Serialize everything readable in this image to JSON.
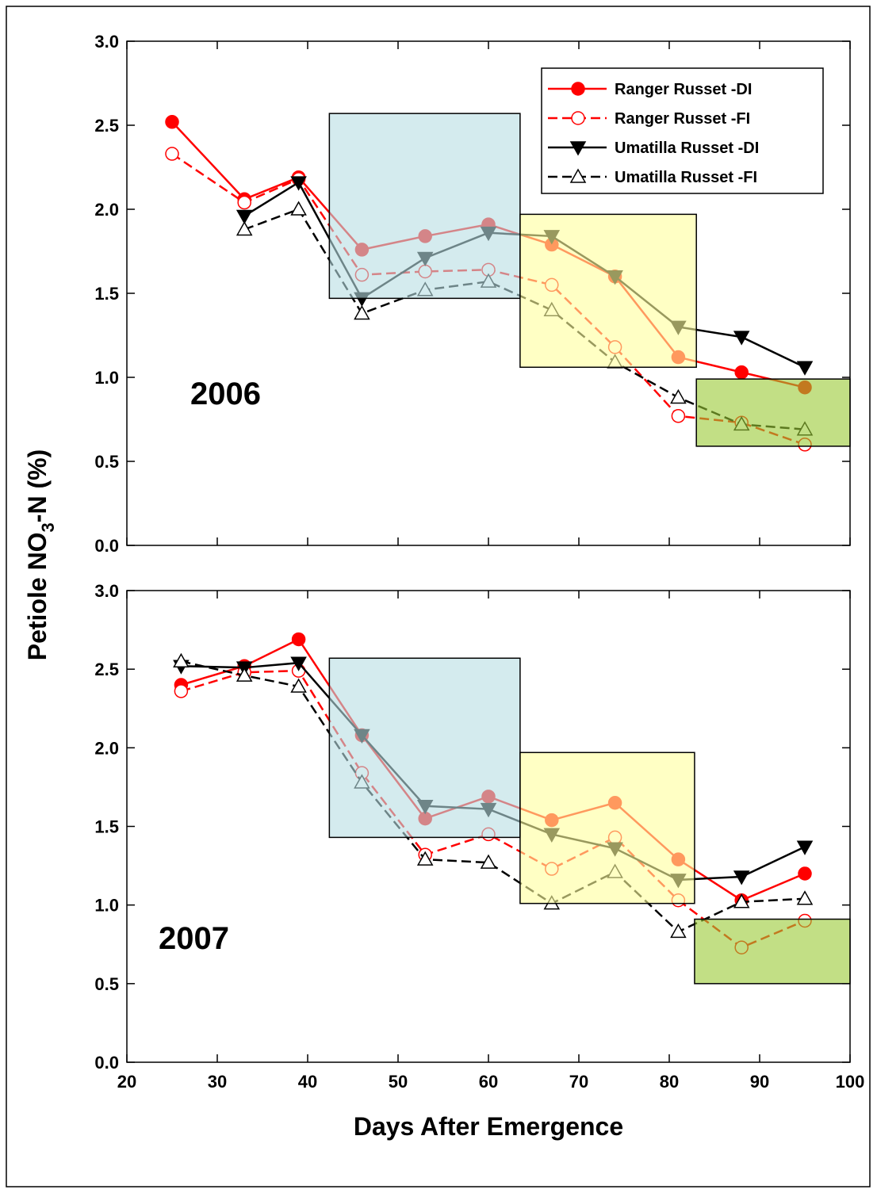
{
  "chart_data": [
    {
      "type": "line",
      "title": "2006",
      "ylabel": {
        "main": "Petiole NO",
        "sub": "3",
        "tail": "-N (%)"
      },
      "xlim": [
        20,
        100
      ],
      "ylim": [
        0,
        3
      ],
      "xticks": [
        20,
        30,
        40,
        50,
        60,
        70,
        80,
        90,
        100
      ],
      "xtick_labels": false,
      "yticks": [
        {
          "value": 0,
          "label": "0.0"
        },
        {
          "value": 0.5,
          "label": "0.5"
        },
        {
          "value": 1,
          "label": "1.0"
        },
        {
          "value": 1.5,
          "label": "1.5"
        },
        {
          "value": 2,
          "label": "2.0"
        },
        {
          "value": 2.5,
          "label": "2.5"
        },
        {
          "value": 3,
          "label": "3.0"
        }
      ],
      "legend": "upper right",
      "regions": [
        {
          "x": [
            42.4,
            63.5
          ],
          "y": [
            1.47,
            2.57
          ],
          "color": "#b8dde2"
        },
        {
          "x": [
            63.5,
            83
          ],
          "y": [
            1.06,
            1.97
          ],
          "color": "#ffff9c"
        },
        {
          "x": [
            83,
            100
          ],
          "y": [
            0.59,
            0.99
          ],
          "color": "#99c933"
        }
      ],
      "series": [
        {
          "name": "Ranger Russet -DI",
          "color": "#ff0000",
          "marker": "circle",
          "filled": true,
          "dashed": false,
          "x": [
            25,
            33,
            39,
            46,
            53,
            60,
            67,
            74,
            81,
            88,
            95
          ],
          "values": [
            2.52,
            2.06,
            2.19,
            1.76,
            1.84,
            1.91,
            1.79,
            1.6,
            1.12,
            1.03,
            0.94
          ]
        },
        {
          "name": "Ranger Russet -FI",
          "color": "#ff0000",
          "marker": "circle",
          "filled": false,
          "dashed": true,
          "x": [
            25,
            33,
            39,
            46,
            53,
            60,
            67,
            74,
            81,
            88,
            95
          ],
          "values": [
            2.33,
            2.04,
            2.18,
            1.61,
            1.63,
            1.64,
            1.55,
            1.18,
            0.77,
            0.73,
            0.6
          ]
        },
        {
          "name": "Umatilla Russet -DI",
          "color": "#000000",
          "marker": "triangle-down",
          "filled": true,
          "dashed": false,
          "x": [
            33,
            39,
            46,
            53,
            60,
            67,
            74,
            81,
            88,
            95
          ],
          "values": [
            1.96,
            2.16,
            1.47,
            1.71,
            1.86,
            1.84,
            1.6,
            1.3,
            1.24,
            1.06
          ]
        },
        {
          "name": "Umatilla Russet -FI",
          "color": "#000000",
          "marker": "triangle-up",
          "filled": false,
          "dashed": true,
          "x": [
            33,
            39,
            46,
            53,
            60,
            67,
            74,
            81,
            88,
            95
          ],
          "values": [
            1.88,
            2.0,
            1.38,
            1.52,
            1.57,
            1.4,
            1.09,
            0.88,
            0.72,
            0.69
          ]
        }
      ]
    },
    {
      "type": "line",
      "title": "2007",
      "xlabel": "Days After Emergence",
      "xlim": [
        20,
        100
      ],
      "ylim": [
        0,
        3
      ],
      "xticks": [
        20,
        30,
        40,
        50,
        60,
        70,
        80,
        90,
        100
      ],
      "xtick_labels": true,
      "yticks": [
        {
          "value": 0,
          "label": "0.0"
        },
        {
          "value": 0.5,
          "label": "0.5"
        },
        {
          "value": 1,
          "label": "1.0"
        },
        {
          "value": 1.5,
          "label": "1.5"
        },
        {
          "value": 2,
          "label": "2.0"
        },
        {
          "value": 2.5,
          "label": "2.5"
        },
        {
          "value": 3,
          "label": "3.0"
        }
      ],
      "regions": [
        {
          "x": [
            42.4,
            63.5
          ],
          "y": [
            1.43,
            2.57
          ],
          "color": "#b8dde2"
        },
        {
          "x": [
            63.5,
            82.8
          ],
          "y": [
            1.01,
            1.97
          ],
          "color": "#ffff9c"
        },
        {
          "x": [
            82.8,
            100
          ],
          "y": [
            0.5,
            0.91
          ],
          "color": "#99c933"
        }
      ],
      "series": [
        {
          "color": "#ff0000",
          "marker": "circle",
          "filled": true,
          "dashed": false,
          "x": [
            26,
            33,
            39,
            46,
            53,
            60,
            67,
            74,
            81,
            88,
            95
          ],
          "values": [
            2.4,
            2.52,
            2.69,
            2.08,
            1.55,
            1.69,
            1.54,
            1.65,
            1.29,
            1.03,
            1.2
          ]
        },
        {
          "color": "#ff0000",
          "marker": "circle",
          "filled": false,
          "dashed": true,
          "x": [
            26,
            33,
            39,
            46,
            53,
            60,
            67,
            74,
            81,
            88,
            95
          ],
          "values": [
            2.36,
            2.48,
            2.49,
            1.84,
            1.32,
            1.45,
            1.23,
            1.43,
            1.03,
            0.73,
            0.9
          ]
        },
        {
          "color": "#000000",
          "marker": "triangle-down",
          "filled": true,
          "dashed": false,
          "x": [
            26,
            33,
            39,
            46,
            53,
            60,
            67,
            74,
            81,
            88,
            95
          ],
          "values": [
            2.52,
            2.51,
            2.54,
            2.08,
            1.63,
            1.61,
            1.45,
            1.36,
            1.16,
            1.18,
            1.37
          ]
        },
        {
          "color": "#000000",
          "marker": "triangle-up",
          "filled": false,
          "dashed": true,
          "x": [
            26,
            33,
            39,
            46,
            53,
            60,
            67,
            74,
            81,
            88,
            95
          ],
          "values": [
            2.55,
            2.46,
            2.39,
            1.78,
            1.29,
            1.27,
            1.01,
            1.21,
            0.83,
            1.02,
            1.04
          ]
        }
      ]
    }
  ]
}
